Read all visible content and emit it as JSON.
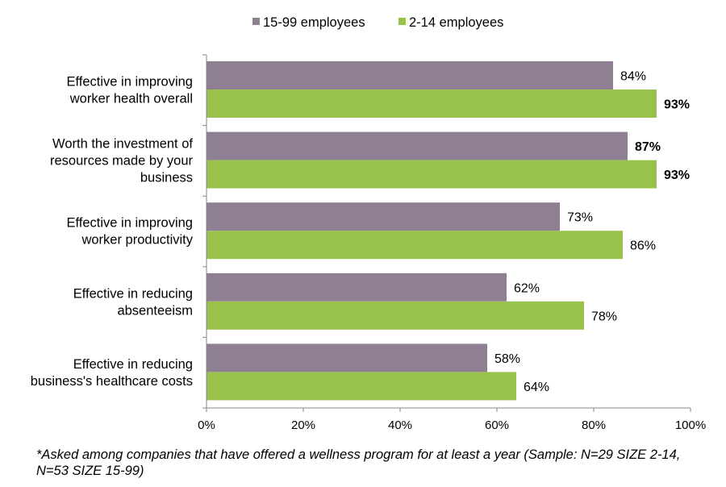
{
  "chart_data": {
    "type": "bar",
    "orientation": "horizontal",
    "categories": [
      [
        "Effective in improving",
        "worker health overall"
      ],
      [
        "Worth the investment of",
        "resources made by your",
        "business"
      ],
      [
        "Effective in improving",
        "worker productivity"
      ],
      [
        "Effective in reducing",
        "absenteeism"
      ],
      [
        "Effective in reducing",
        "business's healthcare costs"
      ]
    ],
    "series": [
      {
        "name": "15-99 employees",
        "color": "#8f7f93",
        "values": [
          84,
          87,
          73,
          62,
          58
        ],
        "labels": [
          "84%",
          "87%",
          "73%",
          "62%",
          "58%"
        ],
        "bold": [
          false,
          true,
          false,
          false,
          false
        ]
      },
      {
        "name": "2-14 employees",
        "color": "#99c24d",
        "values": [
          93,
          93,
          86,
          78,
          64
        ],
        "labels": [
          "93%",
          "93%",
          "86%",
          "78%",
          "64%"
        ],
        "bold": [
          true,
          true,
          false,
          false,
          false
        ]
      }
    ],
    "xlim": [
      0,
      100
    ],
    "xticks": [
      "0%",
      "20%",
      "40%",
      "60%",
      "80%",
      "100%"
    ],
    "legend_position": "top",
    "grid": false
  },
  "footnote": "*Asked among companies that have offered a wellness program for at least a year (Sample: N=29 SIZE 2-14, N=53 SIZE 15-99)"
}
